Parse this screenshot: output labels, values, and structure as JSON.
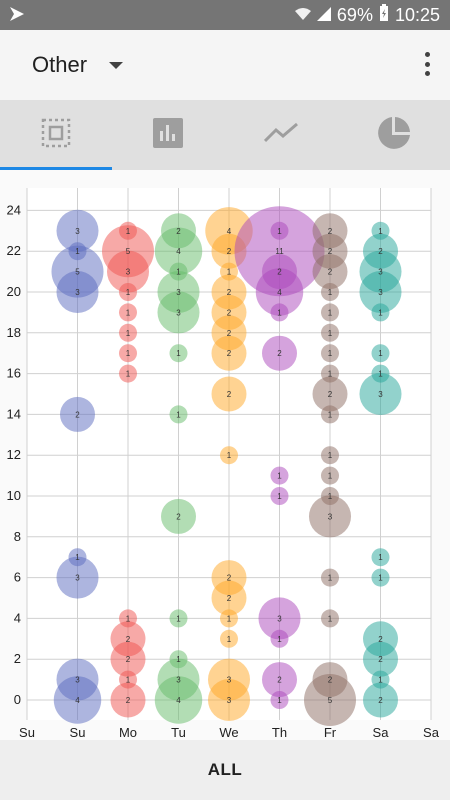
{
  "status_bar": {
    "battery": "69%",
    "time": "10:25",
    "icons": [
      "notification-icon",
      "wifi-icon",
      "signal-icon",
      "battery-icon"
    ]
  },
  "app_bar": {
    "dropdown_label": "Other",
    "icons": [
      "dropdown-caret-icon",
      "overflow-menu-icon"
    ]
  },
  "tabs": [
    {
      "name": "selection",
      "icon": "selection-icon",
      "active": true
    },
    {
      "name": "bar",
      "icon": "bar-chart-icon",
      "active": false
    },
    {
      "name": "line",
      "icon": "line-chart-icon",
      "active": false
    },
    {
      "name": "pie",
      "icon": "pie-chart-icon",
      "active": false
    }
  ],
  "bottom_bar": {
    "button_label": "ALL"
  },
  "chart_data": {
    "type": "scatter",
    "ylim": [
      -1,
      25
    ],
    "y_ticks": [
      "0",
      "2",
      "4",
      "6",
      "8",
      "10",
      "12",
      "14",
      "16",
      "18",
      "20",
      "22",
      "24"
    ],
    "x_labels": [
      "Su",
      "Su",
      "Mo",
      "Tu",
      "We",
      "Th",
      "Fr",
      "Sa",
      "Sa"
    ],
    "grid": true,
    "series": [
      {
        "name": "Su",
        "color": "#5c6bc0",
        "points": [
          {
            "y": 23,
            "v": 3
          },
          {
            "y": 22,
            "v": 1
          },
          {
            "y": 21,
            "v": 5
          },
          {
            "y": 20,
            "v": 3
          },
          {
            "y": 14,
            "v": 2
          },
          {
            "y": 7,
            "v": 1
          },
          {
            "y": 6,
            "v": 3
          },
          {
            "y": 1,
            "v": 3
          },
          {
            "y": 0,
            "v": 4
          }
        ]
      },
      {
        "name": "Mo",
        "color": "#ef5350",
        "points": [
          {
            "y": 23,
            "v": 1
          },
          {
            "y": 22,
            "v": 5
          },
          {
            "y": 21,
            "v": 3
          },
          {
            "y": 20,
            "v": 1
          },
          {
            "y": 19,
            "v": 1
          },
          {
            "y": 18,
            "v": 1
          },
          {
            "y": 17,
            "v": 1
          },
          {
            "y": 16,
            "v": 1
          },
          {
            "y": 4,
            "v": 1
          },
          {
            "y": 3,
            "v": 2
          },
          {
            "y": 2,
            "v": 2
          },
          {
            "y": 1,
            "v": 1
          },
          {
            "y": 0,
            "v": 2
          }
        ]
      },
      {
        "name": "Tu",
        "color": "#66bb6a",
        "points": [
          {
            "y": 23,
            "v": 2
          },
          {
            "y": 22,
            "v": 4
          },
          {
            "y": 21,
            "v": 1
          },
          {
            "y": 20,
            "v": 3
          },
          {
            "y": 19,
            "v": 3
          },
          {
            "y": 17,
            "v": 1
          },
          {
            "y": 14,
            "v": 1
          },
          {
            "y": 9,
            "v": 2
          },
          {
            "y": 4,
            "v": 1
          },
          {
            "y": 2,
            "v": 1
          },
          {
            "y": 1,
            "v": 3
          },
          {
            "y": 0,
            "v": 4
          }
        ]
      },
      {
        "name": "We",
        "color": "#ffa726",
        "points": [
          {
            "y": 23,
            "v": 4
          },
          {
            "y": 22,
            "v": 2
          },
          {
            "y": 21,
            "v": 1
          },
          {
            "y": 20,
            "v": 2
          },
          {
            "y": 19,
            "v": 2
          },
          {
            "y": 18,
            "v": 2
          },
          {
            "y": 17,
            "v": 2
          },
          {
            "y": 15,
            "v": 2
          },
          {
            "y": 12,
            "v": 1
          },
          {
            "y": 6,
            "v": 2
          },
          {
            "y": 5,
            "v": 2
          },
          {
            "y": 4,
            "v": 1
          },
          {
            "y": 3,
            "v": 1
          },
          {
            "y": 1,
            "v": 3
          },
          {
            "y": 0,
            "v": 3
          }
        ]
      },
      {
        "name": "Th",
        "color": "#ab47bc",
        "points": [
          {
            "y": 23,
            "v": 1
          },
          {
            "y": 22,
            "v": 11
          },
          {
            "y": 21,
            "v": 2
          },
          {
            "y": 20,
            "v": 4
          },
          {
            "y": 19,
            "v": 1
          },
          {
            "y": 17,
            "v": 2
          },
          {
            "y": 11,
            "v": 1
          },
          {
            "y": 10,
            "v": 1
          },
          {
            "y": 4,
            "v": 3
          },
          {
            "y": 3,
            "v": 1
          },
          {
            "y": 1,
            "v": 2
          },
          {
            "y": 0,
            "v": 1
          }
        ]
      },
      {
        "name": "Fr",
        "color": "#8d6e63",
        "points": [
          {
            "y": 23,
            "v": 2
          },
          {
            "y": 22,
            "v": 2
          },
          {
            "y": 21,
            "v": 2
          },
          {
            "y": 20,
            "v": 1
          },
          {
            "y": 19,
            "v": 1
          },
          {
            "y": 18,
            "v": 1
          },
          {
            "y": 17,
            "v": 1
          },
          {
            "y": 16,
            "v": 1
          },
          {
            "y": 15,
            "v": 2
          },
          {
            "y": 14,
            "v": 1
          },
          {
            "y": 12,
            "v": 1
          },
          {
            "y": 11,
            "v": 1
          },
          {
            "y": 10,
            "v": 1
          },
          {
            "y": 9,
            "v": 3
          },
          {
            "y": 6,
            "v": 1
          },
          {
            "y": 4,
            "v": 1
          },
          {
            "y": 1,
            "v": 2
          },
          {
            "y": 0,
            "v": 5
          }
        ]
      },
      {
        "name": "Sa",
        "color": "#26a69a",
        "points": [
          {
            "y": 23,
            "v": 1
          },
          {
            "y": 22,
            "v": 2
          },
          {
            "y": 21,
            "v": 3
          },
          {
            "y": 20,
            "v": 3
          },
          {
            "y": 19,
            "v": 1
          },
          {
            "y": 17,
            "v": 1
          },
          {
            "y": 16,
            "v": 1
          },
          {
            "y": 15,
            "v": 3
          },
          {
            "y": 7,
            "v": 1
          },
          {
            "y": 6,
            "v": 1
          },
          {
            "y": 3,
            "v": 2
          },
          {
            "y": 2,
            "v": 2
          },
          {
            "y": 1,
            "v": 1
          },
          {
            "y": 0,
            "v": 2
          }
        ]
      }
    ]
  }
}
